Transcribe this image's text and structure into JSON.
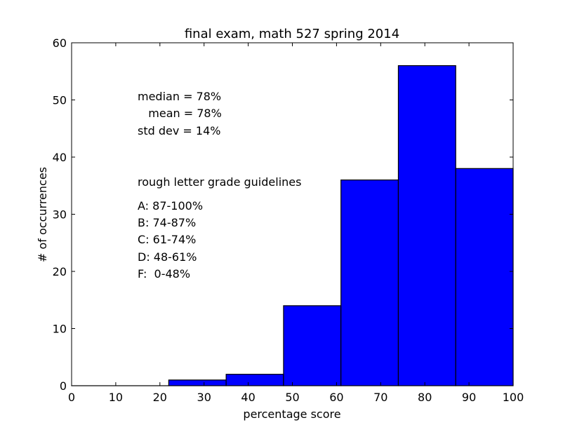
{
  "chart_data": {
    "type": "bar",
    "title": "final exam, math 527 spring 2014",
    "xlabel": "percentage score",
    "ylabel": "# of occurrences",
    "xlim": [
      0,
      100
    ],
    "ylim": [
      0,
      60
    ],
    "xticks": [
      "0",
      "10",
      "20",
      "30",
      "40",
      "50",
      "60",
      "70",
      "80",
      "90",
      "100"
    ],
    "yticks": [
      "0",
      "10",
      "20",
      "30",
      "40",
      "50",
      "60"
    ],
    "bin_edges": [
      0,
      22,
      35,
      48,
      61,
      74,
      87,
      100
    ],
    "values": [
      0,
      1,
      2,
      14,
      36,
      56,
      38
    ],
    "bar_color": "#0000ff",
    "grid": false,
    "annotations": {
      "stats": [
        "median = 78%",
        "   mean = 78%",
        "std dev = 14%"
      ],
      "guide_title": "rough letter grade guidelines",
      "grades": [
        "A: 87-100%",
        "B: 74-87%",
        "C: 61-74%",
        "D: 48-61%",
        "F:  0-48%"
      ]
    }
  }
}
